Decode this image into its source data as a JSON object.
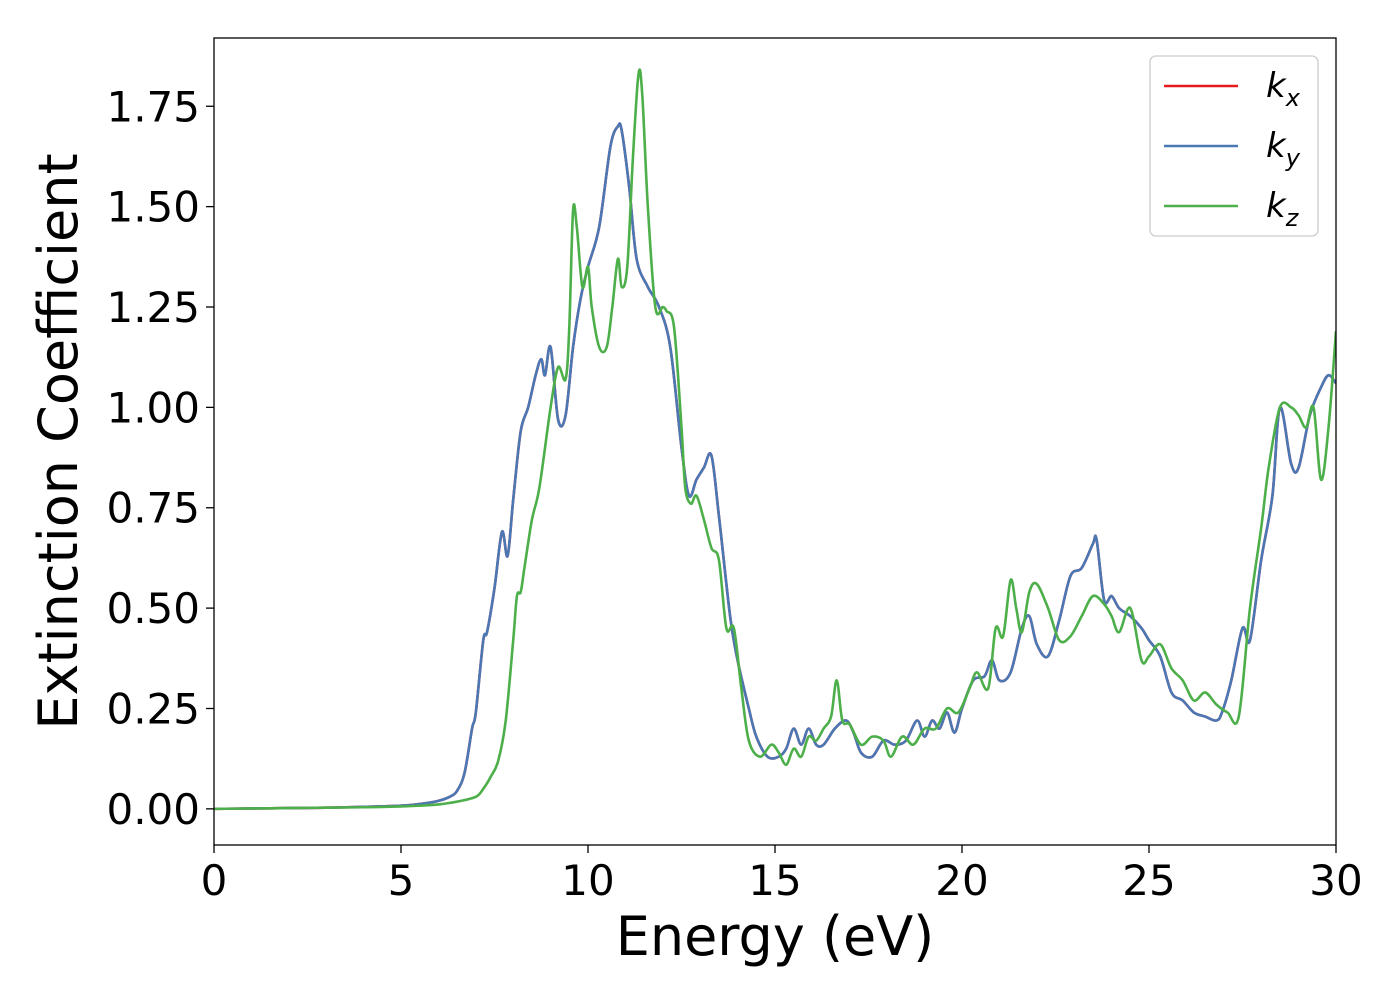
{
  "chart_data": {
    "type": "line",
    "title": "",
    "xlabel": "Energy (eV)",
    "ylabel": "Extinction Coefficient",
    "xlim": [
      0,
      30
    ],
    "ylim": [
      -0.09,
      1.92
    ],
    "xticks": [
      0,
      5,
      10,
      15,
      20,
      25,
      30
    ],
    "xtick_labels": [
      "0",
      "5",
      "10",
      "15",
      "20",
      "25",
      "30"
    ],
    "yticks": [
      0.0,
      0.25,
      0.5,
      0.75,
      1.0,
      1.25,
      1.5,
      1.75
    ],
    "ytick_labels": [
      "0.00",
      "0.25",
      "0.50",
      "0.75",
      "1.00",
      "1.25",
      "1.50",
      "1.75"
    ],
    "grid": false,
    "legend_position": "top-right",
    "series": [
      {
        "name": "k",
        "subscript": "x",
        "color": "#e41a1c",
        "x": [
          0,
          1,
          2,
          3,
          4,
          5,
          5.5,
          6,
          6.3,
          6.5,
          6.7,
          6.9,
          7.0,
          7.2,
          7.3,
          7.5,
          7.7,
          7.85,
          8.0,
          8.2,
          8.4,
          8.6,
          8.75,
          8.85,
          9.0,
          9.2,
          9.4,
          9.6,
          9.8,
          10.0,
          10.3,
          10.6,
          10.8,
          10.9,
          11.1,
          11.3,
          11.6,
          11.9,
          12.2,
          12.5,
          12.7,
          12.9,
          13.1,
          13.3,
          13.5,
          13.8,
          14.0,
          14.3,
          14.5,
          14.8,
          15.1,
          15.3,
          15.5,
          15.7,
          15.9,
          16.1,
          16.3,
          16.6,
          16.9,
          17.1,
          17.3,
          17.6,
          17.9,
          18.2,
          18.5,
          18.8,
          19.0,
          19.2,
          19.4,
          19.6,
          19.8,
          20.0,
          20.3,
          20.6,
          20.8,
          21.0,
          21.3,
          21.6,
          21.8,
          22.0,
          22.3,
          22.6,
          22.9,
          23.2,
          23.5,
          23.6,
          23.8,
          24.0,
          24.2,
          24.5,
          24.8,
          25.0,
          25.3,
          25.6,
          25.9,
          26.2,
          26.5,
          26.8,
          26.95,
          27.2,
          27.5,
          27.7,
          28.0,
          28.3,
          28.5,
          28.8,
          29.0,
          29.3,
          29.6,
          29.8,
          30.0
        ],
        "values": [
          0.0,
          0.001,
          0.002,
          0.003,
          0.005,
          0.008,
          0.012,
          0.02,
          0.03,
          0.045,
          0.09,
          0.2,
          0.24,
          0.42,
          0.44,
          0.55,
          0.69,
          0.63,
          0.77,
          0.94,
          1.0,
          1.08,
          1.12,
          1.08,
          1.15,
          0.97,
          0.98,
          1.15,
          1.27,
          1.35,
          1.45,
          1.65,
          1.7,
          1.69,
          1.55,
          1.37,
          1.3,
          1.25,
          1.15,
          0.9,
          0.78,
          0.82,
          0.85,
          0.88,
          0.73,
          0.48,
          0.37,
          0.25,
          0.18,
          0.13,
          0.13,
          0.15,
          0.2,
          0.16,
          0.2,
          0.16,
          0.16,
          0.2,
          0.22,
          0.19,
          0.14,
          0.13,
          0.17,
          0.16,
          0.17,
          0.22,
          0.18,
          0.22,
          0.2,
          0.24,
          0.19,
          0.25,
          0.32,
          0.33,
          0.37,
          0.32,
          0.34,
          0.45,
          0.48,
          0.41,
          0.38,
          0.47,
          0.58,
          0.6,
          0.66,
          0.67,
          0.52,
          0.53,
          0.5,
          0.48,
          0.45,
          0.42,
          0.38,
          0.29,
          0.27,
          0.24,
          0.23,
          0.22,
          0.24,
          0.32,
          0.45,
          0.42,
          0.62,
          0.78,
          1.0,
          0.86,
          0.85,
          0.98,
          1.05,
          1.08,
          1.06
        ]
      },
      {
        "name": "k",
        "subscript": "y",
        "color": "#4a78b5",
        "x": [
          0,
          1,
          2,
          3,
          4,
          5,
          5.5,
          6,
          6.3,
          6.5,
          6.7,
          6.9,
          7.0,
          7.2,
          7.3,
          7.5,
          7.7,
          7.85,
          8.0,
          8.2,
          8.4,
          8.6,
          8.75,
          8.85,
          9.0,
          9.2,
          9.4,
          9.6,
          9.8,
          10.0,
          10.3,
          10.6,
          10.8,
          10.9,
          11.1,
          11.3,
          11.6,
          11.9,
          12.2,
          12.5,
          12.7,
          12.9,
          13.1,
          13.3,
          13.5,
          13.8,
          14.0,
          14.3,
          14.5,
          14.8,
          15.1,
          15.3,
          15.5,
          15.7,
          15.9,
          16.1,
          16.3,
          16.6,
          16.9,
          17.1,
          17.3,
          17.6,
          17.9,
          18.2,
          18.5,
          18.8,
          19.0,
          19.2,
          19.4,
          19.6,
          19.8,
          20.0,
          20.3,
          20.6,
          20.8,
          21.0,
          21.3,
          21.6,
          21.8,
          22.0,
          22.3,
          22.6,
          22.9,
          23.2,
          23.5,
          23.6,
          23.8,
          24.0,
          24.2,
          24.5,
          24.8,
          25.0,
          25.3,
          25.6,
          25.9,
          26.2,
          26.5,
          26.8,
          26.95,
          27.2,
          27.5,
          27.7,
          28.0,
          28.3,
          28.5,
          28.8,
          29.0,
          29.3,
          29.6,
          29.8,
          30.0
        ],
        "values": [
          0.0,
          0.001,
          0.002,
          0.003,
          0.005,
          0.008,
          0.012,
          0.02,
          0.03,
          0.045,
          0.09,
          0.2,
          0.24,
          0.42,
          0.44,
          0.55,
          0.69,
          0.63,
          0.77,
          0.94,
          1.0,
          1.08,
          1.12,
          1.08,
          1.15,
          0.97,
          0.98,
          1.15,
          1.27,
          1.35,
          1.45,
          1.65,
          1.7,
          1.69,
          1.55,
          1.37,
          1.3,
          1.25,
          1.15,
          0.9,
          0.78,
          0.82,
          0.85,
          0.88,
          0.73,
          0.48,
          0.37,
          0.25,
          0.18,
          0.13,
          0.13,
          0.15,
          0.2,
          0.16,
          0.2,
          0.16,
          0.16,
          0.2,
          0.22,
          0.19,
          0.14,
          0.13,
          0.17,
          0.16,
          0.17,
          0.22,
          0.18,
          0.22,
          0.2,
          0.24,
          0.19,
          0.25,
          0.32,
          0.33,
          0.37,
          0.32,
          0.34,
          0.45,
          0.48,
          0.41,
          0.38,
          0.47,
          0.58,
          0.6,
          0.66,
          0.67,
          0.52,
          0.53,
          0.5,
          0.48,
          0.45,
          0.42,
          0.38,
          0.29,
          0.27,
          0.24,
          0.23,
          0.22,
          0.24,
          0.32,
          0.45,
          0.42,
          0.62,
          0.78,
          1.0,
          0.86,
          0.85,
          0.98,
          1.05,
          1.08,
          1.06
        ]
      },
      {
        "name": "k",
        "subscript": "z",
        "color": "#4daf4a",
        "x": [
          0,
          1,
          2,
          3,
          4,
          5,
          5.5,
          6,
          6.5,
          7.0,
          7.2,
          7.4,
          7.6,
          7.8,
          8.0,
          8.1,
          8.2,
          8.3,
          8.5,
          8.7,
          9.0,
          9.2,
          9.4,
          9.5,
          9.6,
          9.7,
          9.85,
          10.0,
          10.1,
          10.3,
          10.5,
          10.65,
          10.8,
          10.9,
          11.05,
          11.2,
          11.35,
          11.45,
          11.6,
          11.8,
          12.0,
          12.1,
          12.3,
          12.5,
          12.6,
          12.75,
          12.9,
          13.1,
          13.3,
          13.5,
          13.7,
          13.9,
          14.1,
          14.3,
          14.6,
          14.9,
          15.1,
          15.3,
          15.5,
          15.7,
          15.9,
          16.1,
          16.3,
          16.5,
          16.65,
          16.8,
          17.0,
          17.3,
          17.6,
          17.9,
          18.1,
          18.4,
          18.7,
          19.0,
          19.3,
          19.6,
          19.9,
          20.2,
          20.4,
          20.7,
          20.9,
          21.1,
          21.3,
          21.45,
          21.6,
          21.8,
          22.0,
          22.3,
          22.6,
          22.9,
          23.2,
          23.5,
          23.8,
          24.0,
          24.2,
          24.5,
          24.8,
          25.0,
          25.3,
          25.6,
          25.9,
          26.2,
          26.5,
          26.8,
          27.1,
          27.4,
          27.7,
          28.0,
          28.2,
          28.5,
          28.8,
          29.0,
          29.2,
          29.4,
          29.6,
          29.8,
          30.0
        ],
        "values": [
          0.0,
          0.001,
          0.002,
          0.003,
          0.004,
          0.006,
          0.008,
          0.011,
          0.018,
          0.03,
          0.05,
          0.08,
          0.12,
          0.22,
          0.42,
          0.53,
          0.54,
          0.6,
          0.72,
          0.8,
          1.0,
          1.1,
          1.07,
          1.2,
          1.49,
          1.45,
          1.3,
          1.35,
          1.25,
          1.15,
          1.15,
          1.25,
          1.37,
          1.3,
          1.35,
          1.62,
          1.83,
          1.78,
          1.5,
          1.25,
          1.25,
          1.24,
          1.2,
          0.95,
          0.8,
          0.76,
          0.78,
          0.72,
          0.65,
          0.62,
          0.45,
          0.45,
          0.3,
          0.17,
          0.13,
          0.16,
          0.14,
          0.11,
          0.15,
          0.13,
          0.18,
          0.17,
          0.2,
          0.23,
          0.32,
          0.22,
          0.21,
          0.16,
          0.18,
          0.17,
          0.13,
          0.18,
          0.16,
          0.2,
          0.2,
          0.25,
          0.24,
          0.3,
          0.34,
          0.3,
          0.45,
          0.43,
          0.57,
          0.5,
          0.44,
          0.54,
          0.56,
          0.5,
          0.42,
          0.43,
          0.48,
          0.53,
          0.51,
          0.48,
          0.44,
          0.5,
          0.37,
          0.38,
          0.41,
          0.35,
          0.32,
          0.27,
          0.29,
          0.26,
          0.24,
          0.23,
          0.5,
          0.7,
          0.85,
          1.0,
          1.0,
          0.98,
          0.95,
          1.0,
          0.82,
          0.95,
          1.19
        ]
      }
    ]
  }
}
